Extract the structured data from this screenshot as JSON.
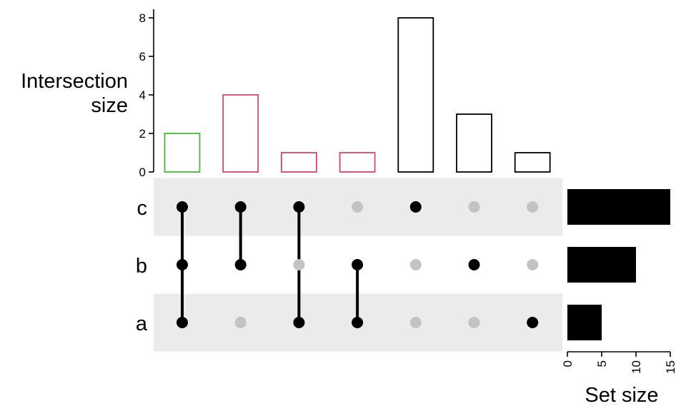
{
  "chart_data": [
    {
      "type": "bar",
      "role": "intersection-size",
      "ylabel": "Intersection\nsize",
      "ylim": [
        0,
        8
      ],
      "yticks": [
        "0",
        "2",
        "4",
        "6",
        "8"
      ],
      "intersections": [
        {
          "sets": [
            "a",
            "b",
            "c"
          ],
          "value": 2,
          "color": "#44bb33"
        },
        {
          "sets": [
            "b",
            "c"
          ],
          "value": 4,
          "color": "#d6456a"
        },
        {
          "sets": [
            "a",
            "c"
          ],
          "value": 1,
          "color": "#d6456a"
        },
        {
          "sets": [
            "a",
            "b"
          ],
          "value": 1,
          "color": "#d6456a"
        },
        {
          "sets": [
            "c"
          ],
          "value": 8,
          "color": "#000000"
        },
        {
          "sets": [
            "b"
          ],
          "value": 3,
          "color": "#000000"
        },
        {
          "sets": [
            "a"
          ],
          "value": 1,
          "color": "#000000"
        }
      ]
    },
    {
      "type": "bar",
      "role": "set-size",
      "orientation": "horizontal",
      "xlabel": "Set size",
      "xlim": [
        0,
        15
      ],
      "xticks": [
        "0",
        "5",
        "10",
        "15"
      ],
      "sets": [
        {
          "name": "c",
          "value": 15
        },
        {
          "name": "b",
          "value": 10
        },
        {
          "name": "a",
          "value": 5
        }
      ]
    }
  ],
  "matrix": {
    "row_order": [
      "c",
      "b",
      "a"
    ],
    "active_dot_color": "#000000",
    "inactive_dot_color": "#c3c3c3",
    "stripe_color": "#ebebeb"
  }
}
